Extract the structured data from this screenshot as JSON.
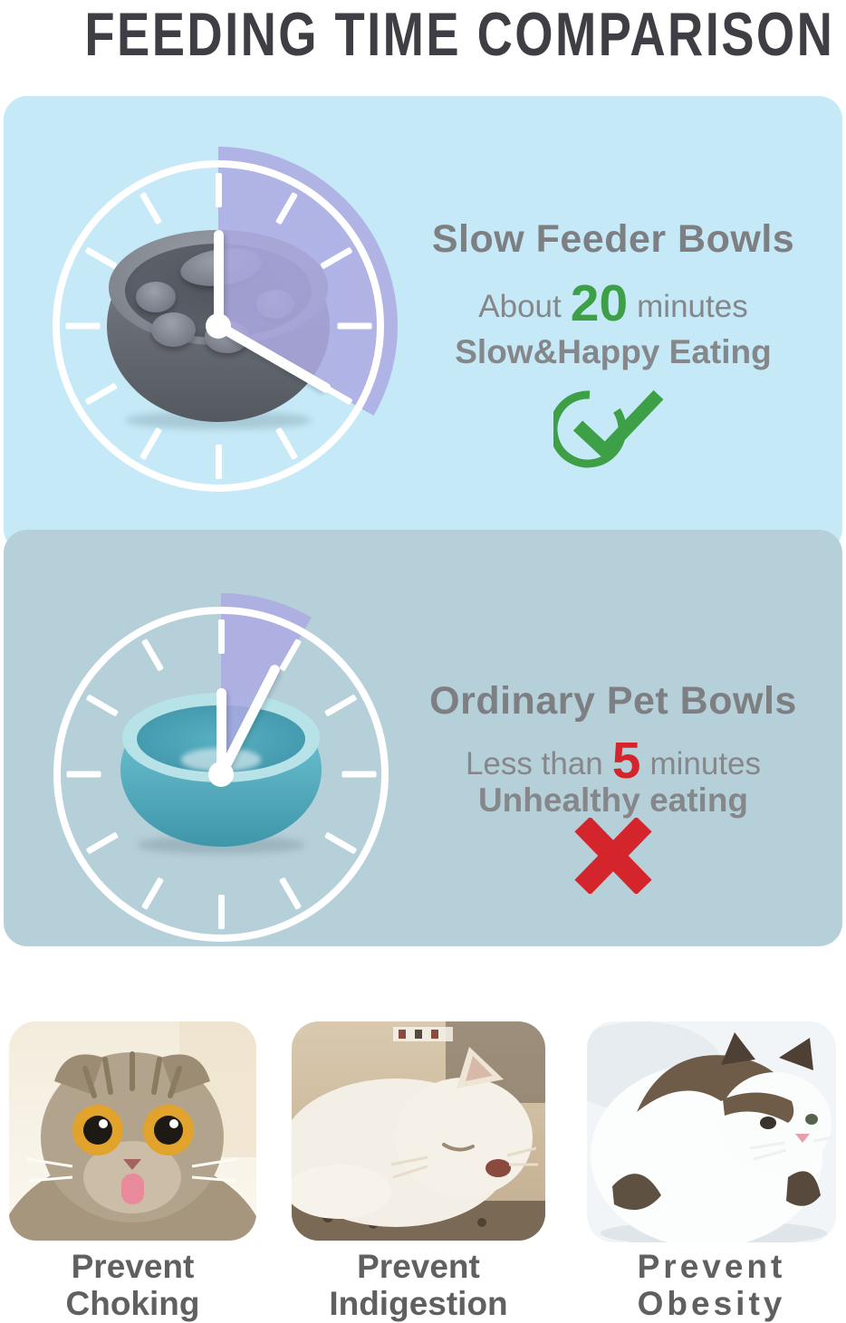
{
  "title": "FEEDING TIME COMPARISON",
  "panels": [
    {
      "heading": "Slow Feeder Bowls",
      "time_prefix": "About",
      "time_value": "20",
      "time_suffix": "minutes",
      "tagline": "Slow&Happy Eating",
      "verdict_icon": "check-icon",
      "clock": {
        "minutes_shaded": 20,
        "wedge_start_deg": 0,
        "wedge_end_deg": 120,
        "hand_positions": [
          "12 o'clock",
          "4 o'clock"
        ]
      },
      "bowl_photo": "slow-feeder-bowl-gray-purple"
    },
    {
      "heading": "Ordinary Pet Bowls",
      "time_prefix": "Less than",
      "time_value": "5",
      "time_suffix": "minutes",
      "tagline": "Unhealthy eating",
      "verdict_icon": "cross-icon",
      "clock": {
        "minutes_shaded": 5,
        "wedge_start_deg": 0,
        "wedge_end_deg": 30,
        "hand_positions": [
          "12 o'clock",
          "1 o'clock"
        ]
      },
      "bowl_photo": "ordinary-teal-pet-bowl"
    }
  ],
  "benefits": [
    {
      "line1": "Prevent",
      "line2": "Choking",
      "photo": "surprised-tabby-cat-tongue-out"
    },
    {
      "line1": "Prevent",
      "line2": "Indigestion",
      "photo": "sleeping-white-cat"
    },
    {
      "line1": "Prevent",
      "line2": "Obesity",
      "photo": "overweight-white-brown-cat"
    }
  ],
  "colors": {
    "panel_slow_bg": "#c5e9f7",
    "panel_ordinary_bg": "#b6d0d9",
    "wedge_purple": "#adaae2",
    "accent_green": "#3da046",
    "accent_red": "#d4242c",
    "title_gray": "#3e3e44",
    "heading_gray": "#7d7f82",
    "caption_gray": "#606060"
  }
}
